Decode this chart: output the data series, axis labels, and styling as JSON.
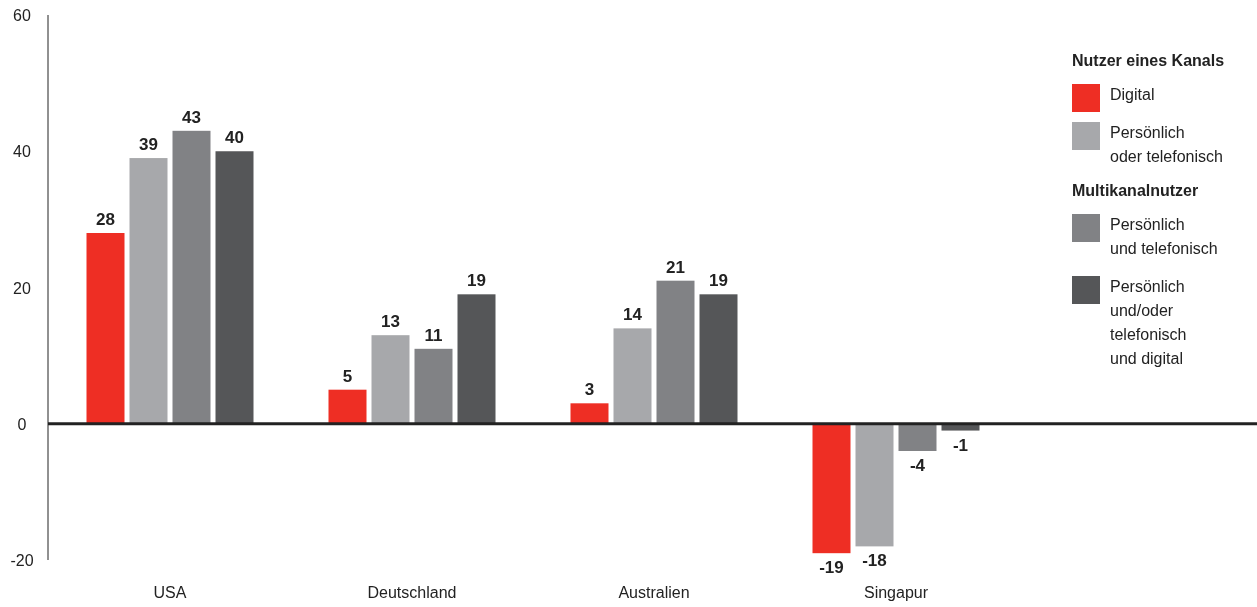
{
  "chart_data": {
    "type": "bar",
    "categories": [
      "USA",
      "Deutschland",
      "Australien",
      "Singapur"
    ],
    "series": [
      {
        "name": "Digital",
        "color": "#ee2e24",
        "values": [
          28,
          5,
          3,
          -19
        ]
      },
      {
        "name": "Persönlich\noder telefonisch",
        "color": "#a7a8ab",
        "values": [
          39,
          13,
          14,
          -18
        ]
      },
      {
        "name": "Persönlich\nund telefonisch",
        "color": "#818285",
        "values": [
          43,
          11,
          21,
          -4
        ]
      },
      {
        "name": "Persönlich\nund/oder\ntelefonisch\nund digital",
        "color": "#555658",
        "values": [
          40,
          19,
          19,
          -1
        ]
      }
    ],
    "annotations": [
      "Nutzer eines Kanals",
      "Multikanalnutzer"
    ],
    "ylim": [
      -20,
      60
    ],
    "yticks": [
      -20,
      0,
      20,
      40,
      60
    ],
    "legend": "right",
    "data_labels": true
  }
}
